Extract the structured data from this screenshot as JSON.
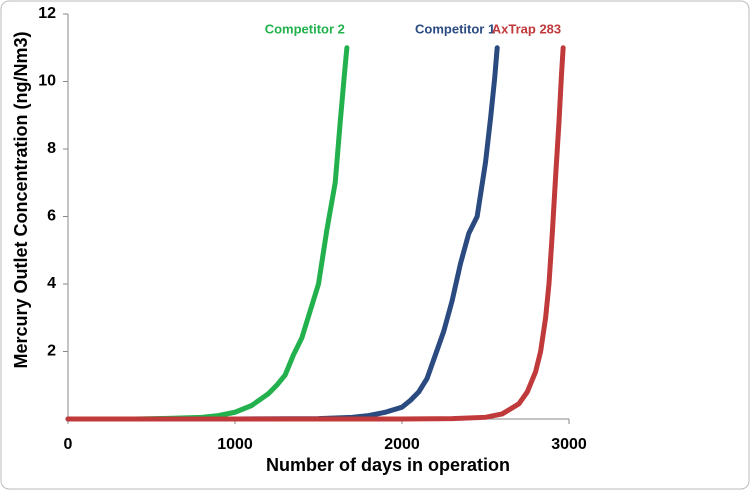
{
  "chart_data": {
    "type": "line",
    "x_label": "Number  of days in operation",
    "y_label": "Mercury Outlet Concentration (ng/Nm3)",
    "xlim": [
      0,
      3000
    ],
    "xticks": [
      0,
      1000,
      2000,
      3000
    ],
    "ylim": [
      0,
      12
    ],
    "yticks": [
      2,
      4,
      6,
      8,
      10,
      12
    ],
    "series": [
      {
        "name": "Competitor 2",
        "color": "#22b14c",
        "x": [
          0,
          200,
          400,
          600,
          800,
          900,
          1000,
          1100,
          1200,
          1250,
          1300,
          1350,
          1400,
          1450,
          1500,
          1550,
          1600,
          1630,
          1655,
          1670
        ],
        "values": [
          0,
          0,
          0,
          0.02,
          0.05,
          0.1,
          0.2,
          0.4,
          0.75,
          1.0,
          1.3,
          1.9,
          2.4,
          3.2,
          4.0,
          5.6,
          7.0,
          8.8,
          10.2,
          11
        ]
      },
      {
        "name": "Competitor 1",
        "color": "#2a4a80",
        "x": [
          0,
          1000,
          1500,
          1700,
          1800,
          1900,
          2000,
          2050,
          2100,
          2150,
          2200,
          2250,
          2300,
          2350,
          2400,
          2450,
          2500,
          2530,
          2555,
          2570
        ],
        "values": [
          0,
          0,
          0.01,
          0.05,
          0.1,
          0.2,
          0.35,
          0.55,
          0.8,
          1.2,
          1.9,
          2.6,
          3.5,
          4.6,
          5.5,
          6.0,
          7.6,
          8.9,
          10.1,
          11
        ]
      },
      {
        "name": "AxTrap 283",
        "color": "#c0393b",
        "x": [
          0,
          1000,
          2000,
          2300,
          2500,
          2600,
          2700,
          2750,
          2800,
          2830,
          2860,
          2880,
          2900,
          2920,
          2940,
          2955,
          2965
        ],
        "values": [
          0,
          0,
          0,
          0.01,
          0.05,
          0.15,
          0.45,
          0.8,
          1.4,
          2.0,
          3.0,
          4.0,
          5.5,
          7.2,
          8.8,
          10.2,
          11
        ]
      }
    ]
  }
}
